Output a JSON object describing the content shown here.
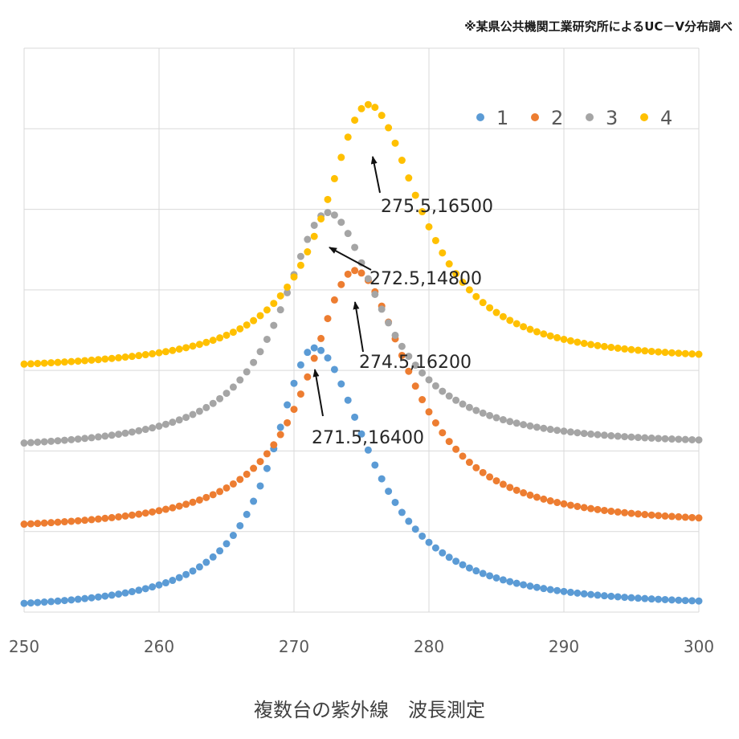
{
  "source_note": "※某県公共機関工業研究所によるUC－V分布調べ",
  "caption": "複数台の紫外線　波長測定",
  "chart_data": {
    "type": "scatter",
    "title": "",
    "xlabel": "",
    "ylabel": "",
    "xlim": [
      250,
      300
    ],
    "x_ticks": [
      "250",
      "260",
      "270",
      "280",
      "290",
      "300"
    ],
    "ylim": [
      0,
      35000
    ],
    "y_tick_step": 5000,
    "y_tick_labels_shown": false,
    "grid": true,
    "legend_position": "top-right",
    "series": [
      {
        "name": "1",
        "color": "#5b9bd5",
        "offset": 0,
        "peak_x": 271.5,
        "peak_y": 16400,
        "base_start": 50,
        "base_end": 200,
        "left_width": 3.8,
        "right_width": 5.0
      },
      {
        "name": "2",
        "color": "#ed7d31",
        "offset": 5000,
        "peak_x": 274.5,
        "peak_y": 16200,
        "base_start": 0,
        "base_end": 250,
        "left_width": 4.2,
        "right_width": 5.0
      },
      {
        "name": "3",
        "color": "#a5a5a5",
        "offset": 10000,
        "peak_x": 272.5,
        "peak_y": 14800,
        "base_start": 0,
        "base_end": 250,
        "left_width": 4.2,
        "right_width": 4.8
      },
      {
        "name": "4",
        "color": "#ffc000",
        "offset": 15000,
        "peak_x": 275.5,
        "peak_y": 16500,
        "base_start": 0,
        "base_end": 400,
        "left_width": 4.0,
        "right_width": 4.8
      }
    ],
    "annotations": [
      {
        "label": "275.5,16500",
        "series": "4"
      },
      {
        "label": "272.5,14800",
        "series": "3"
      },
      {
        "label": "274.5,16200",
        "series": "2"
      },
      {
        "label": "271.5,16400",
        "series": "1"
      }
    ]
  }
}
